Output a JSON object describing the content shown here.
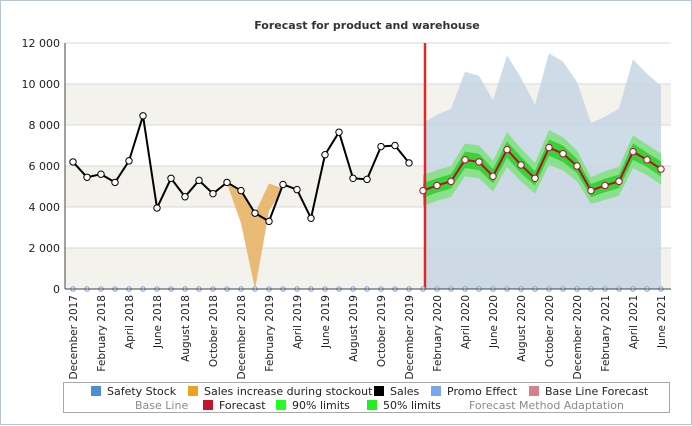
{
  "chart_data": {
    "type": "line",
    "title": "Forecast for product and warehouse",
    "xlabel": "",
    "ylabel": "",
    "ylim": [
      0,
      12000
    ],
    "y_ticks": [
      0,
      2000,
      4000,
      6000,
      8000,
      10000,
      12000
    ],
    "y_tick_labels": [
      "0",
      "2 000",
      "4 000",
      "6 000",
      "8 000",
      "10 000",
      "12 000"
    ],
    "x_months": [
      "Dec 2017",
      "Jan 2018",
      "Feb 2018",
      "Mar 2018",
      "Apr 2018",
      "May 2018",
      "Jun 2018",
      "Jul 2018",
      "Aug 2018",
      "Sep 2018",
      "Oct 2018",
      "Nov 2018",
      "Dec 2018",
      "Jan 2019",
      "Feb 2019",
      "Mar 2019",
      "Apr 2019",
      "May 2019",
      "Jun 2019",
      "Jul 2019",
      "Aug 2019",
      "Sep 2019",
      "Oct 2019",
      "Nov 2019",
      "Dec 2019",
      "Jan 2020",
      "Feb 2020",
      "Mar 2020",
      "Apr 2020",
      "May 2020",
      "Jun 2020",
      "Jul 2020",
      "Aug 2020",
      "Sep 2020",
      "Oct 2020",
      "Nov 2020",
      "Dec 2020",
      "Jan 2021",
      "Feb 2021",
      "Mar 2021",
      "Apr 2021",
      "May 2021",
      "Jun 2021"
    ],
    "x_tick_labels": [
      {
        "index": 0,
        "label": "December 2017"
      },
      {
        "index": 2,
        "label": "February 2018"
      },
      {
        "index": 4,
        "label": "April 2018"
      },
      {
        "index": 6,
        "label": "June 2018"
      },
      {
        "index": 8,
        "label": "August 2018"
      },
      {
        "index": 10,
        "label": "October 2018"
      },
      {
        "index": 12,
        "label": "December 2018"
      },
      {
        "index": 14,
        "label": "February 2019"
      },
      {
        "index": 16,
        "label": "April 2019"
      },
      {
        "index": 18,
        "label": "June 2019"
      },
      {
        "index": 20,
        "label": "August 2019"
      },
      {
        "index": 22,
        "label": "October 2019"
      },
      {
        "index": 24,
        "label": "December 2019"
      },
      {
        "index": 26,
        "label": "February 2020"
      },
      {
        "index": 28,
        "label": "April 2020"
      },
      {
        "index": 30,
        "label": "June 2020"
      },
      {
        "index": 32,
        "label": "August 2020"
      },
      {
        "index": 34,
        "label": "October 2020"
      },
      {
        "index": 36,
        "label": "December 2020"
      },
      {
        "index": 38,
        "label": "February 2021"
      },
      {
        "index": 40,
        "label": "April 2021"
      },
      {
        "index": 42,
        "label": "June 2021"
      }
    ],
    "forecast_start": "Jan 2020",
    "grid": true,
    "legend_position": "bottom",
    "series": [
      {
        "name": "Safety Stock",
        "color": "#4a8fd0",
        "values": []
      },
      {
        "name": "Sales increase during stockout",
        "color": "#f0a020",
        "x_start": "Nov 2018",
        "values": [
          5150,
          4700,
          3700,
          5150,
          4900
        ]
      },
      {
        "name": "Sales",
        "color": "#000000",
        "x_start": "Dec 2017",
        "values": [
          6200,
          5450,
          5600,
          5200,
          6250,
          8450,
          3950,
          5400,
          4500,
          5300,
          4650,
          5200,
          4800,
          3700,
          3300,
          5100,
          4850,
          3450,
          6550,
          7650,
          5400,
          5350,
          6950,
          7000,
          6150
        ]
      },
      {
        "name": "Promo Effect",
        "color": "#7aa6ec",
        "values": []
      },
      {
        "name": "Base Line Forecast",
        "color": "#d8808e",
        "values": []
      },
      {
        "name": "Base Line",
        "color": "",
        "values": []
      },
      {
        "name": "Forecast",
        "color": "#b0102a",
        "x_start": "Jan 2020",
        "values": [
          4800,
          5050,
          5250,
          6300,
          6200,
          5500,
          6800,
          6050,
          5400,
          6900,
          6600,
          6000,
          4800,
          5050,
          5250,
          6700,
          6300,
          5850
        ]
      },
      {
        "name": "90% limits",
        "color": "#33ee33",
        "x_start": "Jan 2020",
        "lower": [
          4050,
          4300,
          4500,
          5500,
          5400,
          4750,
          5950,
          5250,
          4650,
          6050,
          5800,
          5250,
          4150,
          4350,
          4550,
          5900,
          5550,
          5100
        ],
        "upper": [
          5550,
          5800,
          6000,
          7100,
          7000,
          6250,
          7650,
          6850,
          6150,
          7750,
          7400,
          6750,
          5450,
          5750,
          5950,
          7500,
          7050,
          6600
        ]
      },
      {
        "name": "50% limits",
        "color": "#22dd22",
        "x_start": "Jan 2020",
        "lower": [
          4450,
          4700,
          4900,
          5900,
          5800,
          5150,
          6400,
          5650,
          5050,
          6500,
          6200,
          5650,
          4480,
          4720,
          4920,
          6300,
          5950,
          5480
        ],
        "upper": [
          5150,
          5400,
          5600,
          6700,
          6600,
          5850,
          7200,
          6450,
          5750,
          7300,
          7000,
          6350,
          5120,
          5380,
          5580,
          7100,
          6650,
          6220
        ]
      },
      {
        "name": "Forecast Method Adaptation",
        "color": "#c6d6e4",
        "x_start": "Jan 2020",
        "values": [
          8100,
          8500,
          8800,
          10600,
          10400,
          9200,
          11400,
          10300,
          9000,
          11500,
          11100,
          10100,
          8100,
          8400,
          8800,
          11200,
          10500,
          9900
        ]
      }
    ]
  },
  "legend": {
    "row1": [
      {
        "label": "Safety Stock",
        "color": "#4a8fd0"
      },
      {
        "label": "Sales increase during stockout",
        "color": "#f0a020"
      },
      {
        "label": "Sales",
        "color": "#000000"
      },
      {
        "label": "Promo Effect",
        "color": "#7aa6ec"
      },
      {
        "label": "Base Line Forecast",
        "color": "#d8808e"
      }
    ],
    "row2": [
      {
        "label": "Base Line",
        "color": ""
      },
      {
        "label": "Forecast",
        "color": "#c41230"
      },
      {
        "label": "90% limits",
        "color": "#22ff22"
      },
      {
        "label": "50% limits",
        "color": "#22ee22"
      },
      {
        "label": "Forecast Method Adaptation",
        "color": ""
      }
    ]
  },
  "colors": {
    "band_light": "#f3f2ec",
    "gridline": "#d8d8d8",
    "forecast_divider": "#e02828",
    "zero_marker": "#6a9be0"
  }
}
